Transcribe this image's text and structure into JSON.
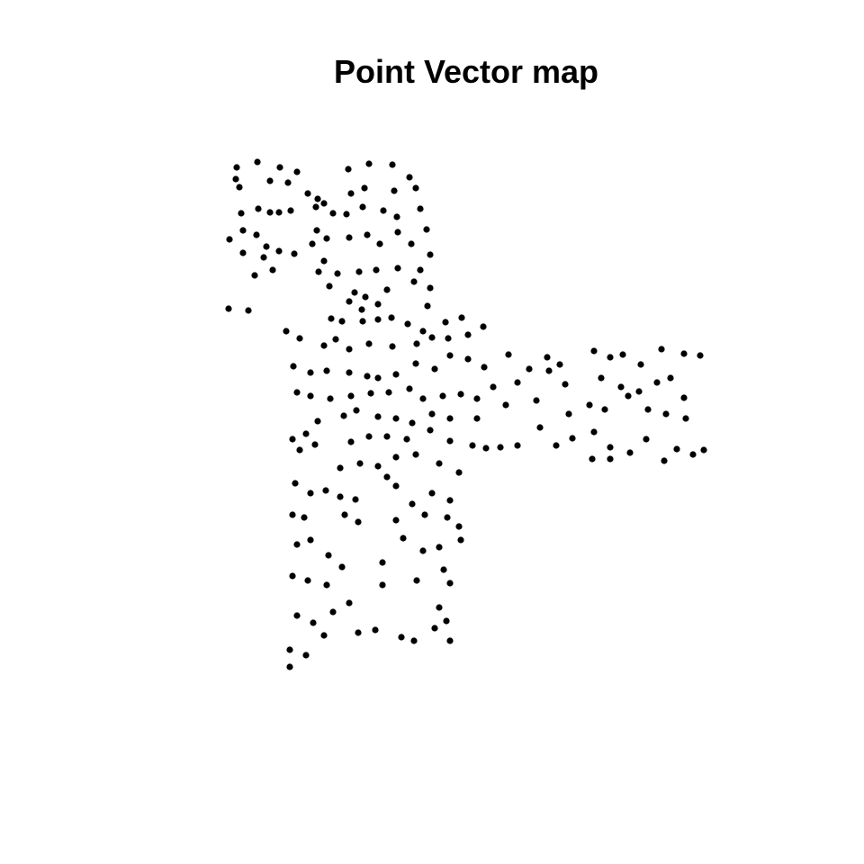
{
  "chart_data": {
    "type": "scatter",
    "title": "Point Vector map",
    "color": "#000000",
    "xlim": [
      250,
      785
    ],
    "ylim": [
      745,
      175
    ],
    "x": [
      263,
      286,
      311,
      330,
      387,
      410,
      436,
      455,
      262,
      266,
      300,
      320,
      342,
      353,
      360,
      390,
      405,
      438,
      462,
      268,
      287,
      300,
      310,
      323,
      351,
      370,
      385,
      403,
      426,
      441,
      467,
      270,
      255,
      285,
      296,
      310,
      327,
      347,
      363,
      352,
      388,
      408,
      422,
      442,
      457,
      474,
      270,
      293,
      303,
      283,
      360,
      375,
      399,
      418,
      442,
      467,
      478,
      354,
      366,
      394,
      406,
      430,
      460,
      478,
      388,
      402,
      420,
      475,
      254,
      276,
      318,
      333,
      368,
      380,
      403,
      420,
      435,
      453,
      470,
      495,
      513,
      537,
      360,
      373,
      388,
      410,
      436,
      463,
      480,
      498,
      520,
      326,
      345,
      363,
      388,
      408,
      420,
      440,
      462,
      483,
      500,
      520,
      538,
      330,
      345,
      367,
      390,
      412,
      432,
      455,
      470,
      492,
      512,
      530,
      325,
      340,
      353,
      382,
      396,
      420,
      440,
      458,
      480,
      500,
      530,
      333,
      350,
      390,
      410,
      430,
      452,
      478,
      500,
      525,
      540,
      378,
      400,
      420,
      440,
      462,
      488,
      510,
      565,
      588,
      608,
      622,
      660,
      678,
      692,
      712,
      735,
      760,
      778,
      548,
      575,
      610,
      628,
      668,
      690,
      710,
      730,
      745,
      760,
      562,
      596,
      632,
      655,
      672,
      698,
      720,
      740,
      762,
      556,
      575,
      600,
      618,
      636,
      660,
      678,
      700,
      718,
      738,
      752,
      770,
      782,
      658,
      678,
      328,
      345,
      362,
      378,
      395,
      430,
      440,
      458,
      480,
      500,
      325,
      338,
      383,
      398,
      440,
      472,
      497,
      510,
      330,
      345,
      365,
      380,
      425,
      448,
      470,
      488,
      512,
      325,
      342,
      363,
      388,
      425,
      463,
      493,
      500,
      330,
      348,
      370,
      360,
      398,
      417,
      446,
      460,
      483,
      496,
      322,
      340,
      322,
      500,
      488
    ],
    "values": [
      186,
      180,
      186,
      191,
      188,
      182,
      183,
      197,
      199,
      208,
      201,
      203,
      215,
      221,
      226,
      215,
      209,
      212,
      209,
      237,
      232,
      236,
      236,
      234,
      230,
      237,
      238,
      230,
      234,
      241,
      232,
      256,
      266,
      261,
      274,
      279,
      282,
      271,
      265,
      256,
      264,
      261,
      271,
      258,
      271,
      255,
      281,
      286,
      300,
      306,
      290,
      304,
      302,
      300,
      298,
      300,
      283,
      302,
      318,
      325,
      330,
      322,
      313,
      320,
      335,
      344,
      338,
      340,
      343,
      345,
      368,
      376,
      354,
      357,
      357,
      355,
      353,
      360,
      368,
      358,
      353,
      363,
      384,
      377,
      388,
      382,
      385,
      382,
      375,
      376,
      372,
      407,
      414,
      412,
      414,
      418,
      420,
      416,
      404,
      410,
      395,
      399,
      408,
      436,
      440,
      443,
      440,
      437,
      436,
      432,
      443,
      440,
      438,
      443,
      488,
      482,
      468,
      462,
      456,
      463,
      465,
      470,
      460,
      465,
      465,
      500,
      494,
      491,
      485,
      485,
      488,
      478,
      490,
      495,
      498,
      520,
      515,
      518,
      508,
      505,
      515,
      525,
      394,
      410,
      397,
      405,
      390,
      397,
      394,
      405,
      388,
      393,
      395,
      430,
      425,
      412,
      427,
      420,
      430,
      435,
      425,
      420,
      442,
      450,
      445,
      460,
      450,
      455,
      440,
      455,
      460,
      465,
      497,
      495,
      475,
      495,
      487,
      480,
      497,
      503,
      488,
      512,
      499,
      505,
      500,
      510,
      510,
      537,
      548,
      545,
      552,
      555,
      530,
      540,
      560,
      548,
      556,
      572,
      575,
      572,
      580,
      578,
      572,
      575,
      585,
      605,
      600,
      617,
      630,
      625,
      598,
      612,
      608,
      600,
      640,
      645,
      650,
      670,
      650,
      645,
      633,
      648,
      684,
      692,
      680,
      706,
      703,
      700,
      708,
      712,
      698,
      690,
      722,
      728,
      741,
      712,
      675
    ]
  }
}
